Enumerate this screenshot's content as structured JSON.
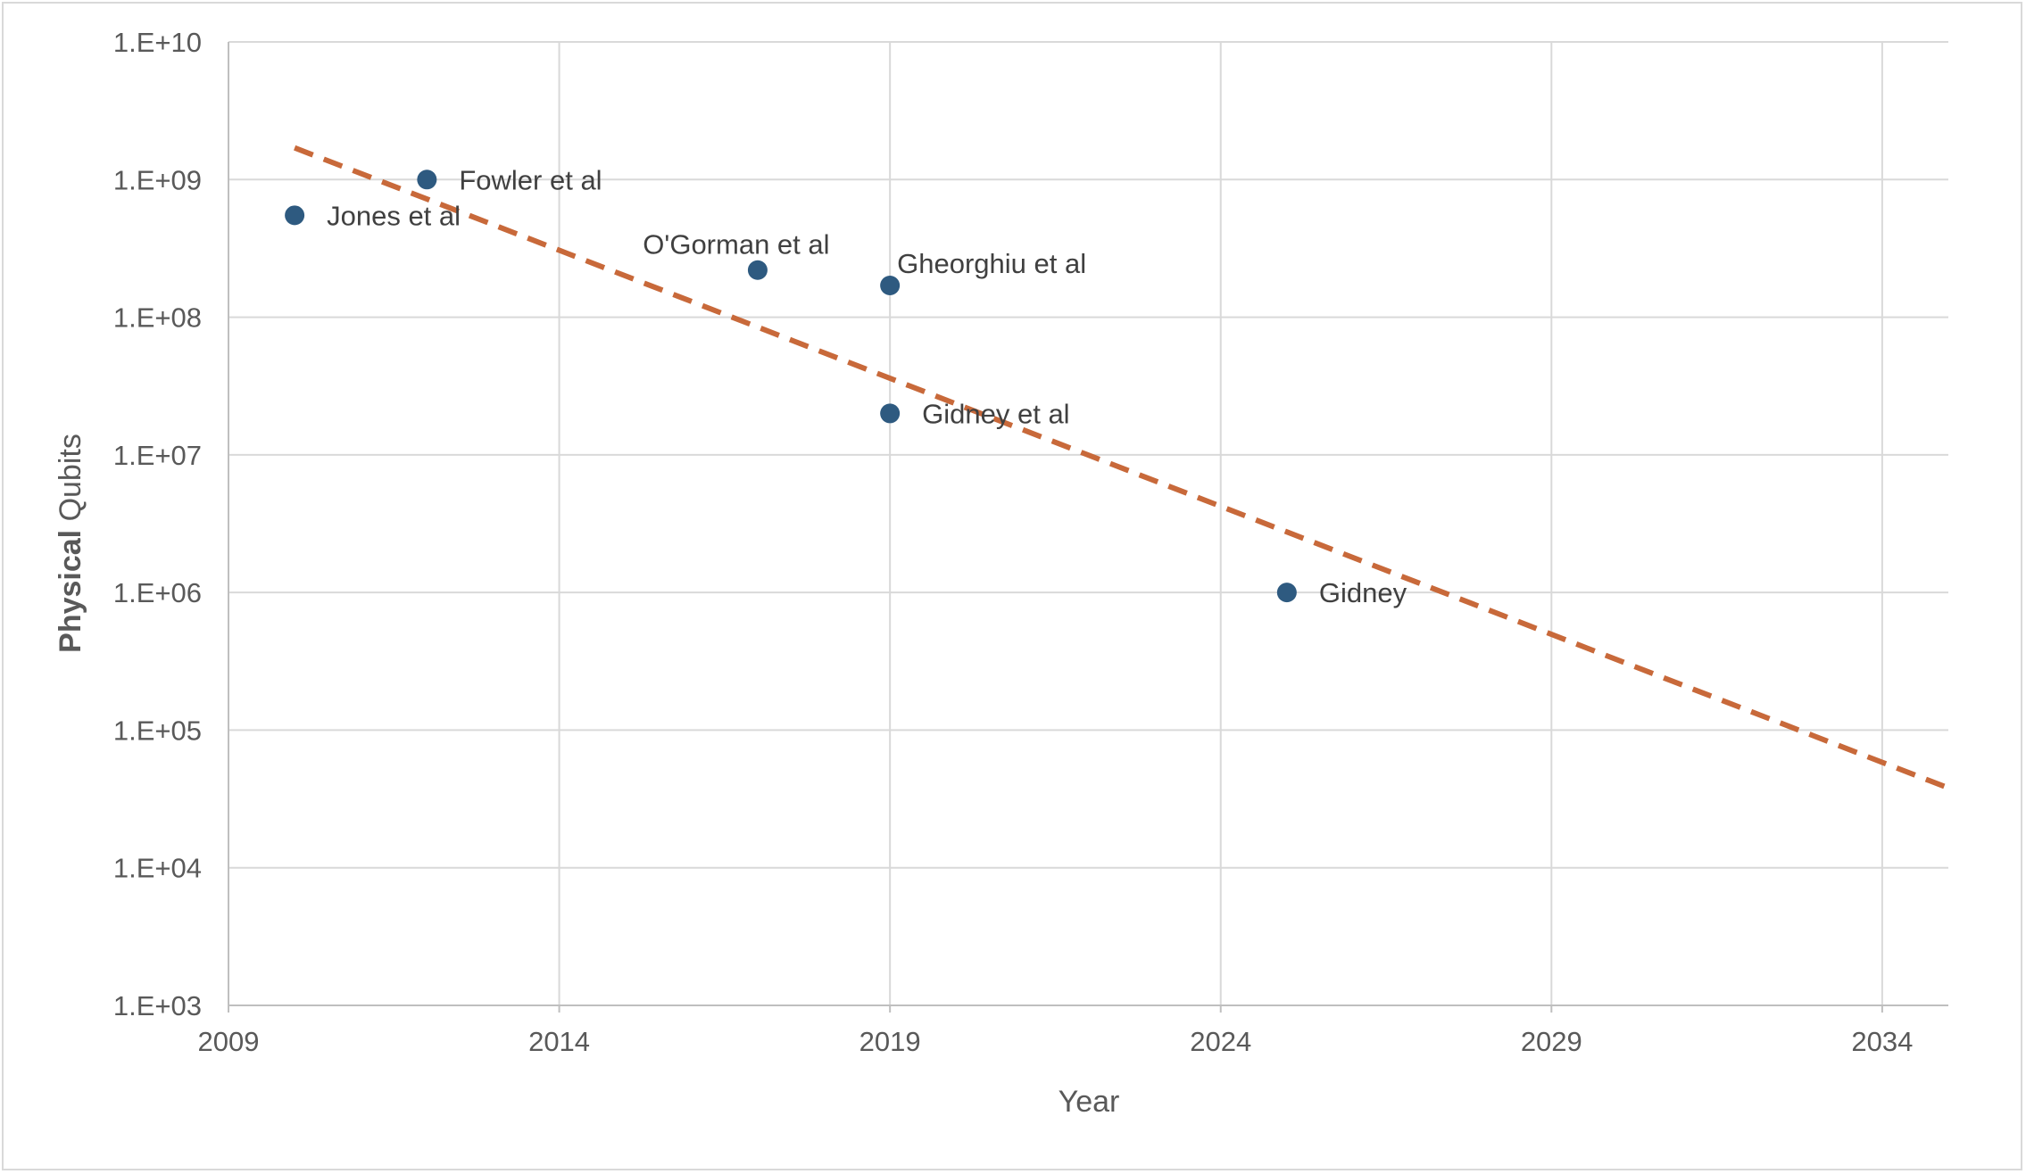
{
  "chart_data": {
    "type": "scatter",
    "xlabel": "Year",
    "ylabel_parts": [
      "Physical",
      " Qubits"
    ],
    "x_ticks": [
      "2009",
      "2014",
      "2019",
      "2024",
      "2029",
      "2034"
    ],
    "y_ticks": [
      "1.E+03",
      "1.E+04",
      "1.E+05",
      "1.E+06",
      "1.E+07",
      "1.E+08",
      "1.E+09",
      "1.E+10"
    ],
    "xlim": [
      2009,
      2035
    ],
    "ylim": [
      1000,
      10000000000
    ],
    "y_scale": "log",
    "grid": true,
    "points": [
      {
        "label": "Jones et al",
        "x": 2010.0,
        "y": 550000000
      },
      {
        "label": "Fowler et al",
        "x": 2012.0,
        "y": 1000000000
      },
      {
        "label": "O'Gorman et al",
        "x": 2017.0,
        "y": 220000000
      },
      {
        "label": "Gheorghiu et al",
        "x": 2019.0,
        "y": 170000000
      },
      {
        "label": "Gidney et al",
        "x": 2019.0,
        "y": 20000000
      },
      {
        "label": "Gidney",
        "x": 2025.0,
        "y": 1000000
      }
    ],
    "trendline": {
      "style": "dashed",
      "x": [
        2010.0,
        2035.0
      ],
      "y": [
        1700000000,
        38000
      ]
    },
    "colors": {
      "points": "#2e5a80",
      "trendline": "#c8693a",
      "grid": "#d9d9d9",
      "axis": "#bfbfbf"
    }
  }
}
